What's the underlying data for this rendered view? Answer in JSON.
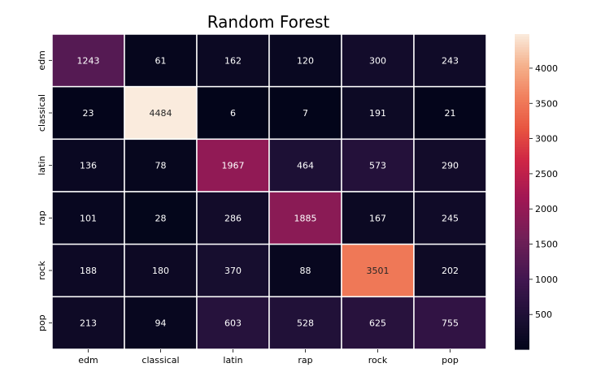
{
  "chart_data": {
    "type": "heatmap",
    "title": "Random Forest",
    "xlabel": "",
    "ylabel": "",
    "x_categories": [
      "edm",
      "classical",
      "latin",
      "rap",
      "rock",
      "pop"
    ],
    "y_categories": [
      "edm",
      "classical",
      "latin",
      "rap",
      "rock",
      "pop"
    ],
    "values": [
      [
        1243,
        61,
        162,
        120,
        300,
        243
      ],
      [
        23,
        4484,
        6,
        7,
        191,
        21
      ],
      [
        136,
        78,
        1967,
        464,
        573,
        290
      ],
      [
        101,
        28,
        286,
        1885,
        167,
        245
      ],
      [
        188,
        180,
        370,
        88,
        3501,
        202
      ],
      [
        213,
        94,
        603,
        528,
        625,
        755
      ]
    ],
    "colormap": "rocket",
    "vmin": 6,
    "vmax": 4484,
    "colorbar_ticks": [
      500,
      1000,
      1500,
      2000,
      2500,
      3000,
      3500,
      4000
    ],
    "grid_line_color": "#ffffff"
  }
}
